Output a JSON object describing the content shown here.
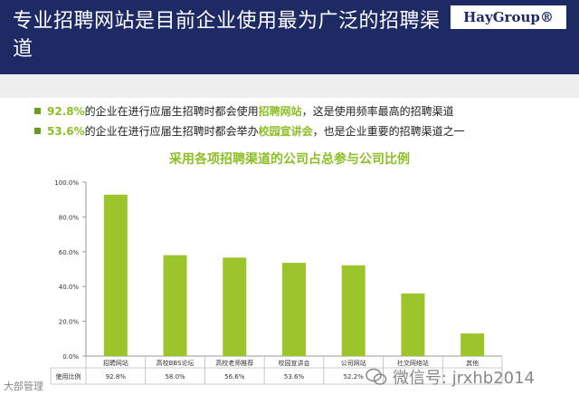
{
  "header": {
    "title": "专业招聘网站是目前企业使用最为广泛的招聘渠道",
    "logo": "HayGroup®"
  },
  "bullets": [
    {
      "pct": "92.8%",
      "pre": "的企业在进行应届生招聘时都会使用",
      "hl": "招聘网站",
      "post": "，这是使用频率最高的招聘渠道"
    },
    {
      "pct": "53.6%",
      "pre": "的企业在进行应届生招聘时都会举办",
      "hl": "校园宣讲会",
      "post": "，也是企业重要的招聘渠道之一"
    }
  ],
  "colors": {
    "header_bg": "#1e2a63",
    "bar": "#9bc52a",
    "accent": "#8cbf24"
  },
  "chart_data": {
    "type": "bar",
    "title": "采用各项招聘渠道的公司占总参与公司比例",
    "categories": [
      "招聘网站",
      "高校BBS论坛",
      "高校老师推荐",
      "校园宣讲会",
      "公司网站",
      "社交网络站",
      "其他"
    ],
    "values": [
      92.8,
      58.0,
      56.6,
      53.6,
      52.2,
      36.0,
      13.0
    ],
    "table_row_label": "使用比例",
    "table_values": [
      "92.8%",
      "58.0%",
      "56.6%",
      "53.6%",
      "52.2%",
      "",
      ""
    ],
    "yticks": [
      "0.0%",
      "20.0%",
      "40.0%",
      "60.0%",
      "80.0%",
      "100.0%"
    ],
    "ylim": [
      0,
      100
    ],
    "grid": false
  },
  "watermark": {
    "left": "大部管理",
    "right": "微信号: jrxhb2014",
    "icon": "wechat-icon"
  }
}
